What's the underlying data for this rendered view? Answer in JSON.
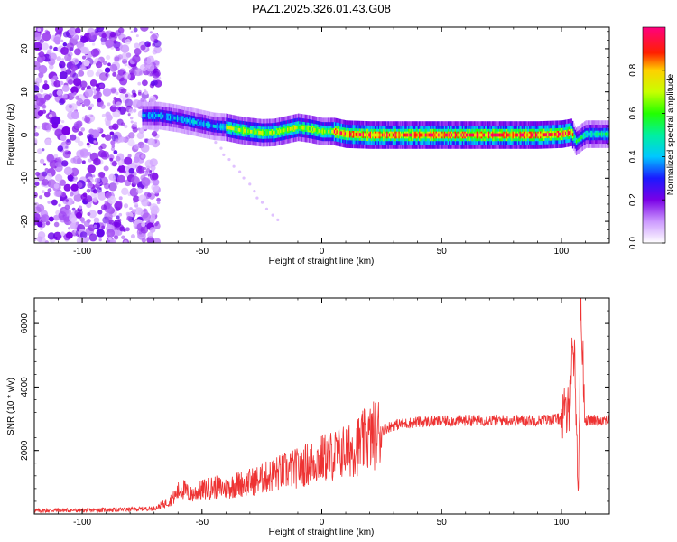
{
  "title": "PAZ1.2025.326.01.43.G08",
  "chart_data": [
    {
      "type": "heatmap",
      "title": "PAZ1.2025.326.01.43.G08",
      "xlabel": "Height of straight line (km)",
      "ylabel": "Frequency (Hz)",
      "xlim": [
        -120,
        120
      ],
      "ylim": [
        -25,
        25
      ],
      "xticks": [
        -100,
        -50,
        0,
        50,
        100
      ],
      "yticks": [
        -20,
        -10,
        0,
        10,
        20
      ],
      "colorbar": {
        "label": "Normalized spectral amplitude",
        "range": [
          0,
          1
        ],
        "ticks": [
          "0.0",
          "0.2",
          "0.4",
          "0.6",
          "0.8"
        ],
        "colormap": "rainbow (white-violet-blue-cyan-green-yellow-red-magenta)"
      },
      "regions": [
        {
          "x_range": [
            -120,
            -68
          ],
          "y_range": [
            -25,
            25
          ],
          "amplitude": 0.1
        },
        {
          "x_range": [
            -75,
            -40
          ],
          "y_range": [
            1,
            6
          ],
          "amplitude": 0.35
        },
        {
          "x_range": [
            -40,
            5
          ],
          "y_range": [
            -1,
            3
          ],
          "amplitude": 0.6
        },
        {
          "x_range": [
            5,
            105
          ],
          "y_range": [
            -1,
            1
          ],
          "amplitude": 0.8
        },
        {
          "x_range": [
            105,
            120
          ],
          "y_range": [
            -1,
            1.5
          ],
          "amplitude": 0.45
        }
      ],
      "ridge": {
        "x": [
          -75,
          -68,
          -60,
          -55,
          -50,
          -45,
          -40,
          -35,
          -30,
          -25,
          -20,
          -15,
          -10,
          -5,
          0,
          5,
          10,
          20,
          30,
          40,
          50,
          60,
          70,
          80,
          90,
          100,
          104,
          106,
          110,
          120
        ],
        "freq": [
          4.5,
          4.5,
          3.8,
          3.2,
          2.6,
          2.0,
          1.8,
          1.2,
          0.8,
          0.5,
          0.6,
          1.2,
          1.8,
          1.4,
          0.8,
          0.8,
          0.2,
          0.0,
          0.0,
          0.0,
          0.0,
          0.0,
          0.0,
          0.0,
          0.0,
          0.2,
          0.6,
          -1.5,
          0.2,
          0.2
        ]
      },
      "grid": false
    },
    {
      "type": "line",
      "xlabel": "Height of straight line (km)",
      "ylabel": "SNR (10 * v/v)",
      "xlim": [
        -120,
        120
      ],
      "ylim": [
        0,
        6800
      ],
      "xticks": [
        -100,
        -50,
        0,
        50,
        100
      ],
      "yticks": [
        2000,
        4000,
        6000
      ],
      "color": "#ee3333",
      "series": [
        {
          "x": [
            -120,
            -110,
            -100,
            -90,
            -80,
            -70,
            -66,
            -62,
            -60,
            -58,
            -55,
            -50,
            -45,
            -40,
            -35,
            -30,
            -25,
            -20,
            -15,
            -10,
            -5,
            0,
            5,
            10,
            15,
            20,
            25,
            30,
            35,
            40,
            50,
            60,
            70,
            80,
            90,
            95,
            100,
            103,
            104,
            105,
            106,
            107,
            108,
            110,
            115,
            120
          ],
          "values": [
            100,
            120,
            110,
            130,
            140,
            180,
            300,
            500,
            700,
            800,
            600,
            750,
            850,
            800,
            950,
            1000,
            1100,
            1250,
            1350,
            1450,
            1600,
            1750,
            1850,
            2000,
            2150,
            2400,
            2650,
            2800,
            2850,
            2900,
            2920,
            2950,
            2950,
            2950,
            2950,
            2980,
            3000,
            3200,
            4600,
            5400,
            3800,
            300,
            6700,
            2950,
            2950,
            2980
          ]
        }
      ],
      "annotations": [
        {
          "x": 105,
          "y": 5400,
          "text": ""
        },
        {
          "x": 108,
          "y": 6700,
          "text": ""
        }
      ],
      "grid": false
    }
  ]
}
